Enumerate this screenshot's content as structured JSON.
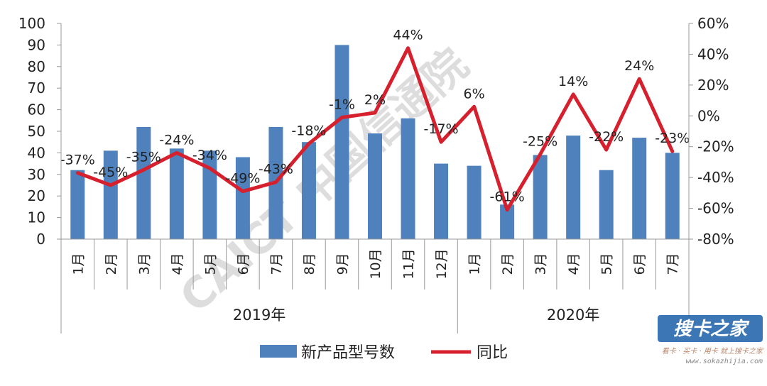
{
  "chart_data": {
    "type": "bar",
    "categories": [
      "1月",
      "2月",
      "3月",
      "4月",
      "5月",
      "6月",
      "7月",
      "8月",
      "9月",
      "10月",
      "11月",
      "12月",
      "1月",
      "2月",
      "3月",
      "4月",
      "5月",
      "6月",
      "7月"
    ],
    "groups": [
      {
        "label": "2019年",
        "count": 12
      },
      {
        "label": "2020年",
        "count": 7
      }
    ],
    "series": [
      {
        "name": "新产品型号数",
        "type": "bar",
        "axis": "left",
        "color": "#4F81BD",
        "values": [
          32,
          41,
          52,
          42,
          41,
          38,
          52,
          45,
          90,
          49,
          56,
          35,
          34,
          16,
          39,
          48,
          32,
          47,
          40
        ]
      },
      {
        "name": "同比",
        "type": "line",
        "axis": "right",
        "color": "#D7202D",
        "values": [
          -37,
          -45,
          -35,
          -24,
          -34,
          -49,
          -43,
          -18,
          -1,
          2,
          44,
          -17,
          6,
          -61,
          -25,
          14,
          -22,
          24,
          -23
        ],
        "labels": [
          "-37%",
          "-45%",
          "-35%",
          "-24%",
          "-34%",
          "-49%",
          "-43%",
          "-18%",
          "-1%",
          "2%",
          "44%",
          "-17%",
          "6%",
          "-61%",
          "-25%",
          "14%",
          "-22%",
          "24%",
          "-23%"
        ]
      }
    ],
    "ylim_left": [
      0,
      100
    ],
    "yticks_left": [
      "0",
      "10",
      "20",
      "30",
      "40",
      "50",
      "60",
      "70",
      "80",
      "90",
      "100"
    ],
    "ylim_right": [
      -80,
      60
    ],
    "yticks_right": [
      "-80%",
      "-60%",
      "-40%",
      "-20%",
      "0%",
      "20%",
      "40%",
      "60%"
    ],
    "grid": false,
    "legend_position": "bottom"
  },
  "watermarks": {
    "center": "CAICT 中国信通院",
    "corner_brand": "搜卡之家",
    "corner_slogan": "看卡 · 买卡 · 用卡 就上搜卡之家",
    "corner_url": "www.sokazhijia.com"
  }
}
